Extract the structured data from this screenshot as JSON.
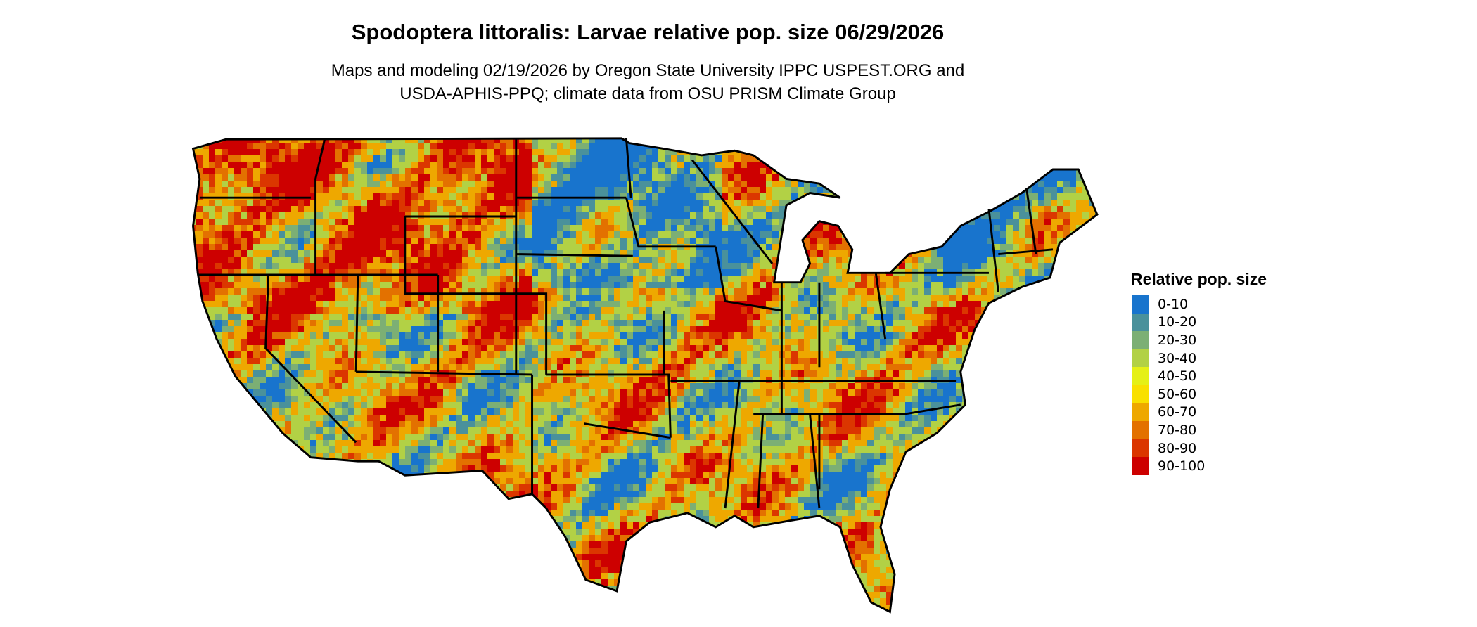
{
  "title": "Spodoptera littoralis: Larvae relative pop. size 06/29/2026",
  "subtitle_line1": "Maps and modeling 02/19/2026 by Oregon State University IPPC USPEST.ORG and",
  "subtitle_line2": "USDA-APHIS-PPQ; climate data from OSU PRISM Climate Group",
  "legend": {
    "title": "Relative pop. size",
    "items": [
      {
        "label": "0-10",
        "color": "#1874cd"
      },
      {
        "label": "10-20",
        "color": "#4a919b"
      },
      {
        "label": "20-30",
        "color": "#7caf74"
      },
      {
        "label": "30-40",
        "color": "#b2d145"
      },
      {
        "label": "40-50",
        "color": "#e5f016"
      },
      {
        "label": "50-60",
        "color": "#f9e000"
      },
      {
        "label": "60-70",
        "color": "#eea800"
      },
      {
        "label": "70-80",
        "color": "#e37100"
      },
      {
        "label": "80-90",
        "color": "#db3600"
      },
      {
        "label": "90-100",
        "color": "#cd0000"
      }
    ]
  },
  "map": {
    "region": "Contiguous United States",
    "border_color": "#000000"
  }
}
